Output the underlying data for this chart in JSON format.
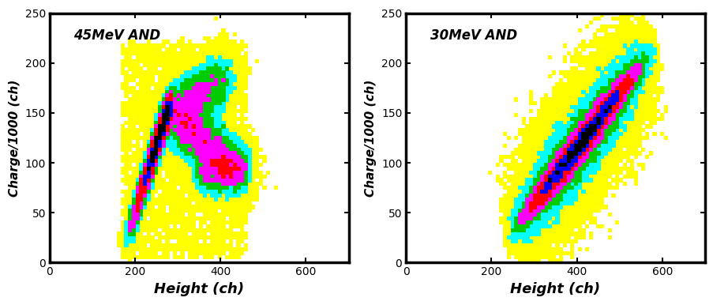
{
  "plot1_label": "45MeV AND",
  "plot2_label": "30MeV AND",
  "xlabel": "Height (ch)",
  "ylabel": "Charge/1000 (ch)",
  "xlim": [
    0,
    700
  ],
  "ylim": [
    0,
    250
  ],
  "xticks": [
    0,
    200,
    400,
    600
  ],
  "yticks": [
    0,
    50,
    100,
    150,
    200,
    250
  ],
  "bg_color": "#ffffff",
  "color_thresholds": [
    0.04,
    0.1,
    0.2,
    0.35,
    0.55,
    0.75,
    1.01
  ],
  "color_values": [
    "#ffff00",
    "#00ffff",
    "#00cc00",
    "#ff00ff",
    "#ff0000",
    "#0000ff",
    "#000000"
  ]
}
